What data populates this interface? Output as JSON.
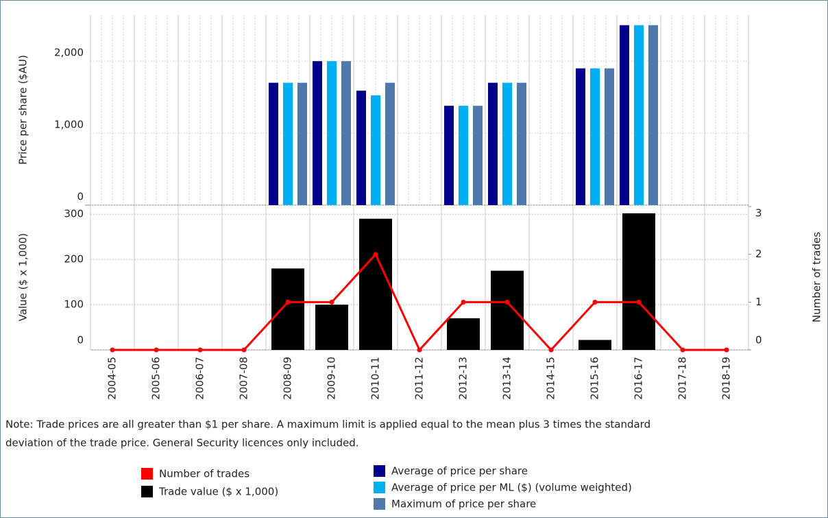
{
  "chart_data": {
    "type": "bar",
    "categories": [
      "2004-05",
      "2005-06",
      "2006-07",
      "2007-08",
      "2008-09",
      "2009-10",
      "2010-11",
      "2011-12",
      "2012-13",
      "2013-14",
      "2014-15",
      "2015-16",
      "2016-17",
      "2017-18",
      "2018-19"
    ],
    "note": [
      "Note: Trade prices are all greater than $1 per share. A maximum limit is applied equal to the mean plus 3 times the standard",
      "deviation of the trade price. General Security licences only included."
    ],
    "grid": true,
    "price": {
      "ylabel": "Price per share ($AU)",
      "ylim": [
        0,
        2640
      ],
      "yticks": [
        0,
        {
          "value": 1000,
          "label": "1,000"
        },
        {
          "value": 2000,
          "label": "2,000"
        }
      ],
      "series": [
        {
          "name": "Average of price per share",
          "color": "#00008b",
          "values": [
            null,
            null,
            null,
            null,
            1700,
            2000,
            1590,
            null,
            1380,
            1700,
            null,
            1900,
            2500,
            null,
            null
          ]
        },
        {
          "name": "Average of price per ML ($) (volume weighted)",
          "color": "#00b0f0",
          "values": [
            null,
            null,
            null,
            null,
            1700,
            2000,
            1525,
            null,
            1380,
            1700,
            null,
            1900,
            2500,
            null,
            null
          ]
        },
        {
          "name": "Maximum of price per share",
          "color": "#5078a8",
          "values": [
            null,
            null,
            null,
            null,
            1700,
            2000,
            1700,
            null,
            1380,
            1700,
            null,
            1900,
            2500,
            null,
            null
          ]
        }
      ]
    },
    "trade": {
      "ylabel": "Value ($ x 1,000)",
      "y2label": "Number of trades",
      "ylim": [
        0,
        320
      ],
      "yticks": [
        0,
        100,
        200,
        300
      ],
      "y2lim": [
        0,
        3.03
      ],
      "y2ticks": [
        0,
        1,
        2,
        3
      ],
      "series": [
        {
          "name": "Number of trades",
          "type": "line",
          "axis": "y2",
          "color": "#ff0000",
          "values": [
            0,
            0,
            0,
            0,
            1,
            1,
            2,
            0,
            1,
            1,
            0,
            1,
            1,
            0,
            0
          ]
        },
        {
          "name": "Trade value ($ x 1,000)",
          "type": "bar",
          "color": "#000000",
          "values": [
            null,
            null,
            null,
            null,
            180,
            100,
            290,
            null,
            70,
            175,
            null,
            22,
            302,
            null,
            null
          ]
        }
      ]
    }
  }
}
